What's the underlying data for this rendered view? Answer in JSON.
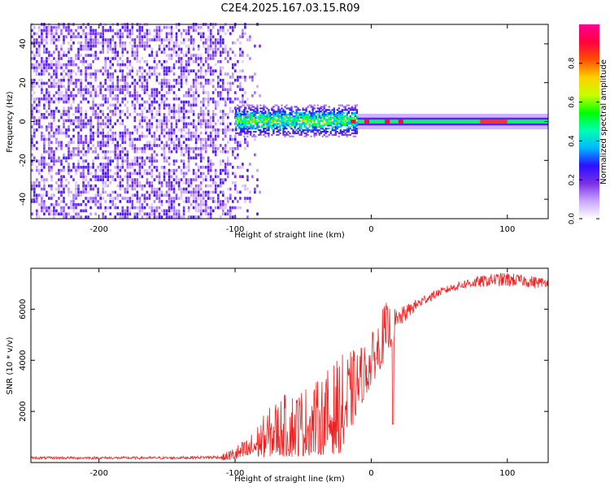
{
  "title": "C2E4.2025.167.03.15.R09",
  "chart_data": [
    {
      "type": "heatmap",
      "xlabel": "Height of straight line (km)",
      "ylabel": "Frequency (Hz)",
      "xlim": [
        -250,
        130
      ],
      "ylim": [
        -50,
        50
      ],
      "xticks": [
        -200,
        -100,
        0,
        100
      ],
      "yticks": [
        -40,
        -20,
        0,
        20,
        40
      ],
      "colorbar": {
        "label": "Normalized spectral amplitude",
        "range": [
          0,
          1
        ],
        "ticks": [
          0.0,
          0.2,
          0.4,
          0.6,
          0.8
        ],
        "colormap": [
          "#ffffff",
          "#c9a6ff",
          "#7b2fe6",
          "#2a10ff",
          "#00b8ff",
          "#00ffb0",
          "#00ff00",
          "#c8ff00",
          "#ffd000",
          "#ff5000",
          "#ff0040",
          "#ff0090"
        ]
      },
      "regions": [
        {
          "label": "noise",
          "x_range": [
            -250,
            -80
          ],
          "freq_range": [
            -50,
            50
          ],
          "amplitude": 0.15
        },
        {
          "label": "transition",
          "x_range": [
            -100,
            -10
          ],
          "freq_range": [
            -8,
            8
          ],
          "amplitude": 0.4
        },
        {
          "label": "carrier",
          "x_range": [
            -10,
            130
          ],
          "freq_range": [
            -1,
            1
          ],
          "amplitude": 0.5
        },
        {
          "label": "carrier-peak",
          "x_range": [
            80,
            100
          ],
          "freq_range": [
            -1,
            1
          ],
          "amplitude": 0.85
        }
      ]
    },
    {
      "type": "line",
      "color": "#ee2222",
      "xlabel": "Height of straight line (km)",
      "ylabel": "SNR (10 * v/v)",
      "xlim": [
        -250,
        130
      ],
      "ylim": [
        0,
        7600
      ],
      "xticks": [
        -200,
        -100,
        0,
        100
      ],
      "yticks": [
        2000,
        4000,
        6000
      ],
      "envelope": [
        {
          "x": -250,
          "low": 80,
          "high": 250
        },
        {
          "x": -200,
          "low": 80,
          "high": 250
        },
        {
          "x": -150,
          "low": 80,
          "high": 250
        },
        {
          "x": -110,
          "low": 80,
          "high": 300
        },
        {
          "x": -100,
          "low": 100,
          "high": 650
        },
        {
          "x": -90,
          "low": 150,
          "high": 1000
        },
        {
          "x": -80,
          "low": 200,
          "high": 1800
        },
        {
          "x": -70,
          "low": 250,
          "high": 2500
        },
        {
          "x": -60,
          "low": 200,
          "high": 2800
        },
        {
          "x": -50,
          "low": 250,
          "high": 3000
        },
        {
          "x": -40,
          "low": 300,
          "high": 3200
        },
        {
          "x": -30,
          "low": 300,
          "high": 3800
        },
        {
          "x": -20,
          "low": 400,
          "high": 4300
        },
        {
          "x": -10,
          "low": 2000,
          "high": 4500
        },
        {
          "x": 0,
          "low": 3000,
          "high": 5000
        },
        {
          "x": 10,
          "low": 4000,
          "high": 6300
        },
        {
          "x": 20,
          "low": 5200,
          "high": 6000
        },
        {
          "x": 30,
          "low": 5800,
          "high": 6300
        },
        {
          "x": 40,
          "low": 6200,
          "high": 6600
        },
        {
          "x": 50,
          "low": 6500,
          "high": 6800
        },
        {
          "x": 60,
          "low": 6700,
          "high": 7000
        },
        {
          "x": 70,
          "low": 6800,
          "high": 7200
        },
        {
          "x": 80,
          "low": 6850,
          "high": 7300
        },
        {
          "x": 90,
          "low": 6900,
          "high": 7400
        },
        {
          "x": 100,
          "low": 6850,
          "high": 7450
        },
        {
          "x": 110,
          "low": 6900,
          "high": 7350
        },
        {
          "x": 120,
          "low": 6800,
          "high": 7300
        },
        {
          "x": 130,
          "low": 6900,
          "high": 7200
        }
      ],
      "annotations": [
        {
          "x": 16,
          "y": 1500,
          "text": ""
        }
      ]
    }
  ]
}
